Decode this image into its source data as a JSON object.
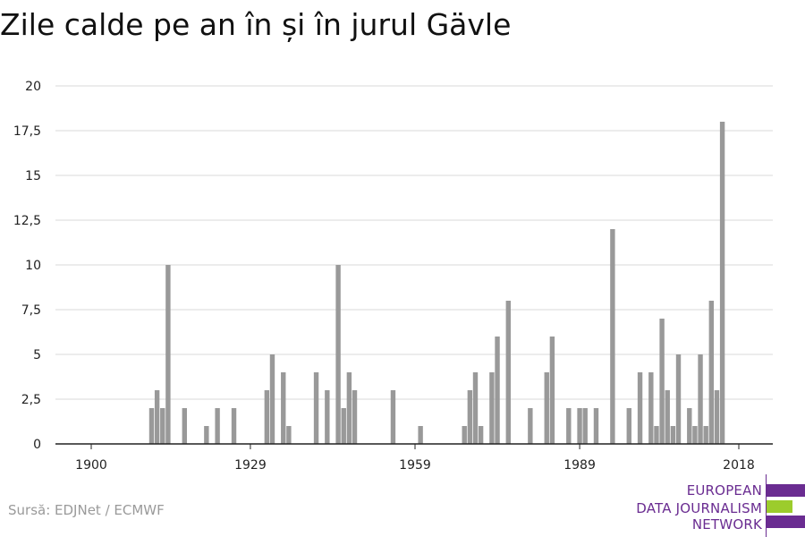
{
  "title": "Zile calde pe an în și în jurul Gävle",
  "source": "Sursă: EDJNet / ECMWF",
  "logo": {
    "lines": [
      "EUROPEAN",
      "DATA JOURNALISM",
      "NETWORK"
    ],
    "colors": {
      "purple": "#6a2c91",
      "green": "#9ccc2c"
    }
  },
  "chart_data": {
    "type": "bar",
    "title": "Zile calde pe an în și în jurul Gävle",
    "xlabel": "",
    "ylabel": "",
    "ylim": [
      0,
      20
    ],
    "yticks": [
      0,
      2.5,
      5,
      7.5,
      10,
      12.5,
      15,
      17.5,
      20
    ],
    "ytick_labels": [
      "0",
      "2,5",
      "5",
      "7,5",
      "10",
      "12,5",
      "15",
      "17,5",
      "20"
    ],
    "xlim": [
      1900,
      2018
    ],
    "xticks": [
      1900,
      1929,
      1959,
      1989,
      2018
    ],
    "xtick_labels": [
      "1900",
      "1929",
      "1959",
      "1989",
      "2018"
    ],
    "grid": true,
    "bar_color": "#999999",
    "categories": [
      1911,
      1912,
      1913,
      1914,
      1917,
      1921,
      1923,
      1926,
      1932,
      1933,
      1935,
      1936,
      1941,
      1943,
      1945,
      1946,
      1947,
      1948,
      1955,
      1960,
      1968,
      1969,
      1970,
      1971,
      1973,
      1974,
      1976,
      1980,
      1983,
      1984,
      1987,
      1989,
      1990,
      1992,
      1995,
      1998,
      2000,
      2002,
      2003,
      2004,
      2005,
      2006,
      2007,
      2009,
      2010,
      2011,
      2012,
      2013,
      2014,
      2015
    ],
    "values": [
      2,
      3,
      2,
      10,
      2,
      1,
      2,
      2,
      3,
      5,
      4,
      1,
      4,
      3,
      10,
      2,
      4,
      3,
      3,
      1,
      1,
      3,
      4,
      1,
      4,
      6,
      8,
      2,
      4,
      6,
      2,
      2,
      2,
      2,
      12,
      2,
      4,
      4,
      1,
      7,
      3,
      1,
      5,
      2,
      1,
      5,
      1,
      8,
      3,
      18
    ]
  }
}
